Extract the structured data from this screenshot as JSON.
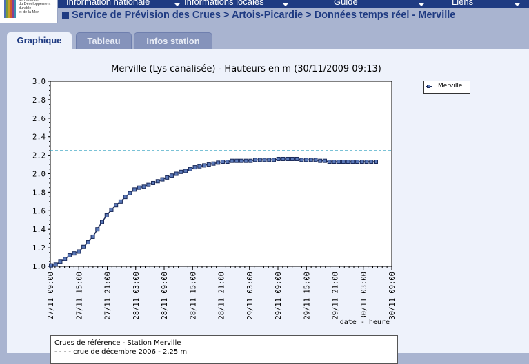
{
  "logo": {
    "text": "de l'Energie,\ndu Développement\ndurable\net de la Mer",
    "bar_colors": [
      "#4b6fb5",
      "#7a9a3b",
      "#c8a227",
      "#d35b2b",
      "#8a3f8f",
      "#3a8fb0"
    ]
  },
  "topnav": {
    "items": [
      {
        "label": "Information nationale"
      },
      {
        "label": "Informations locales"
      },
      {
        "label": "Guide"
      },
      {
        "label": "Liens"
      }
    ]
  },
  "breadcrumb": {
    "text": "Service de Prévision des Crues > Artois-Picardie > Données temps réel - Merville"
  },
  "tabs": [
    {
      "label": "Graphique",
      "active": true
    },
    {
      "label": "Tableau",
      "active": false
    },
    {
      "label": "Infos station",
      "active": false
    }
  ],
  "chart_data": {
    "type": "line",
    "title": "Merville (Lys canalisée) - Hauteurs en m (30/11/2009 09:13)",
    "xlabel": "date - heure",
    "ylabel": "",
    "ylim": [
      1.0,
      3.0
    ],
    "y_ticks": [
      "1.0",
      "1.2",
      "1.4",
      "1.6",
      "1.8",
      "2.0",
      "2.2",
      "2.4",
      "2.6",
      "2.8",
      "3.0"
    ],
    "x_ticks": [
      "27/11 09:00",
      "27/11 15:00",
      "27/11 21:00",
      "28/11 03:00",
      "28/11 09:00",
      "28/11 15:00",
      "28/11 21:00",
      "29/11 03:00",
      "29/11 09:00",
      "29/11 15:00",
      "29/11 21:00",
      "30/11 03:00",
      "30/11 09:00"
    ],
    "legend": "top-right",
    "grid": false,
    "series": [
      {
        "name": "Merville",
        "color": "#5a78b8",
        "x": [
          0,
          1,
          2,
          3,
          4,
          5,
          6,
          7,
          8,
          9,
          10,
          11,
          12,
          13,
          14,
          15,
          16,
          17,
          18,
          19,
          20,
          21,
          22,
          23,
          24,
          25,
          26,
          27,
          28,
          29,
          30,
          31,
          32,
          33,
          34,
          35,
          36,
          37,
          38,
          39,
          40,
          41,
          42,
          43,
          44,
          45,
          46,
          47,
          48,
          49,
          50,
          51,
          52,
          53,
          54,
          55,
          56,
          57,
          58,
          59,
          60,
          61,
          62,
          63,
          64,
          65,
          66,
          67,
          68,
          69,
          70
        ],
        "y": [
          1.01,
          1.02,
          1.05,
          1.08,
          1.12,
          1.14,
          1.16,
          1.21,
          1.26,
          1.32,
          1.4,
          1.48,
          1.55,
          1.61,
          1.66,
          1.7,
          1.75,
          1.79,
          1.83,
          1.85,
          1.86,
          1.88,
          1.9,
          1.92,
          1.94,
          1.96,
          1.98,
          2.0,
          2.02,
          2.03,
          2.05,
          2.07,
          2.08,
          2.09,
          2.1,
          2.11,
          2.12,
          2.13,
          2.13,
          2.14,
          2.14,
          2.14,
          2.14,
          2.14,
          2.15,
          2.15,
          2.15,
          2.15,
          2.15,
          2.16,
          2.16,
          2.16,
          2.16,
          2.16,
          2.15,
          2.15,
          2.15,
          2.15,
          2.14,
          2.14,
          2.13,
          2.13,
          2.13,
          2.13,
          2.13,
          2.13,
          2.13,
          2.13,
          2.13,
          2.13,
          2.13
        ]
      }
    ],
    "reference_line": {
      "value": 2.25,
      "color": "#2a9dbd"
    }
  },
  "reference": {
    "title": "Crues de référence - Station Merville",
    "item": "crue de décembre 2006 - 2.25 m"
  }
}
